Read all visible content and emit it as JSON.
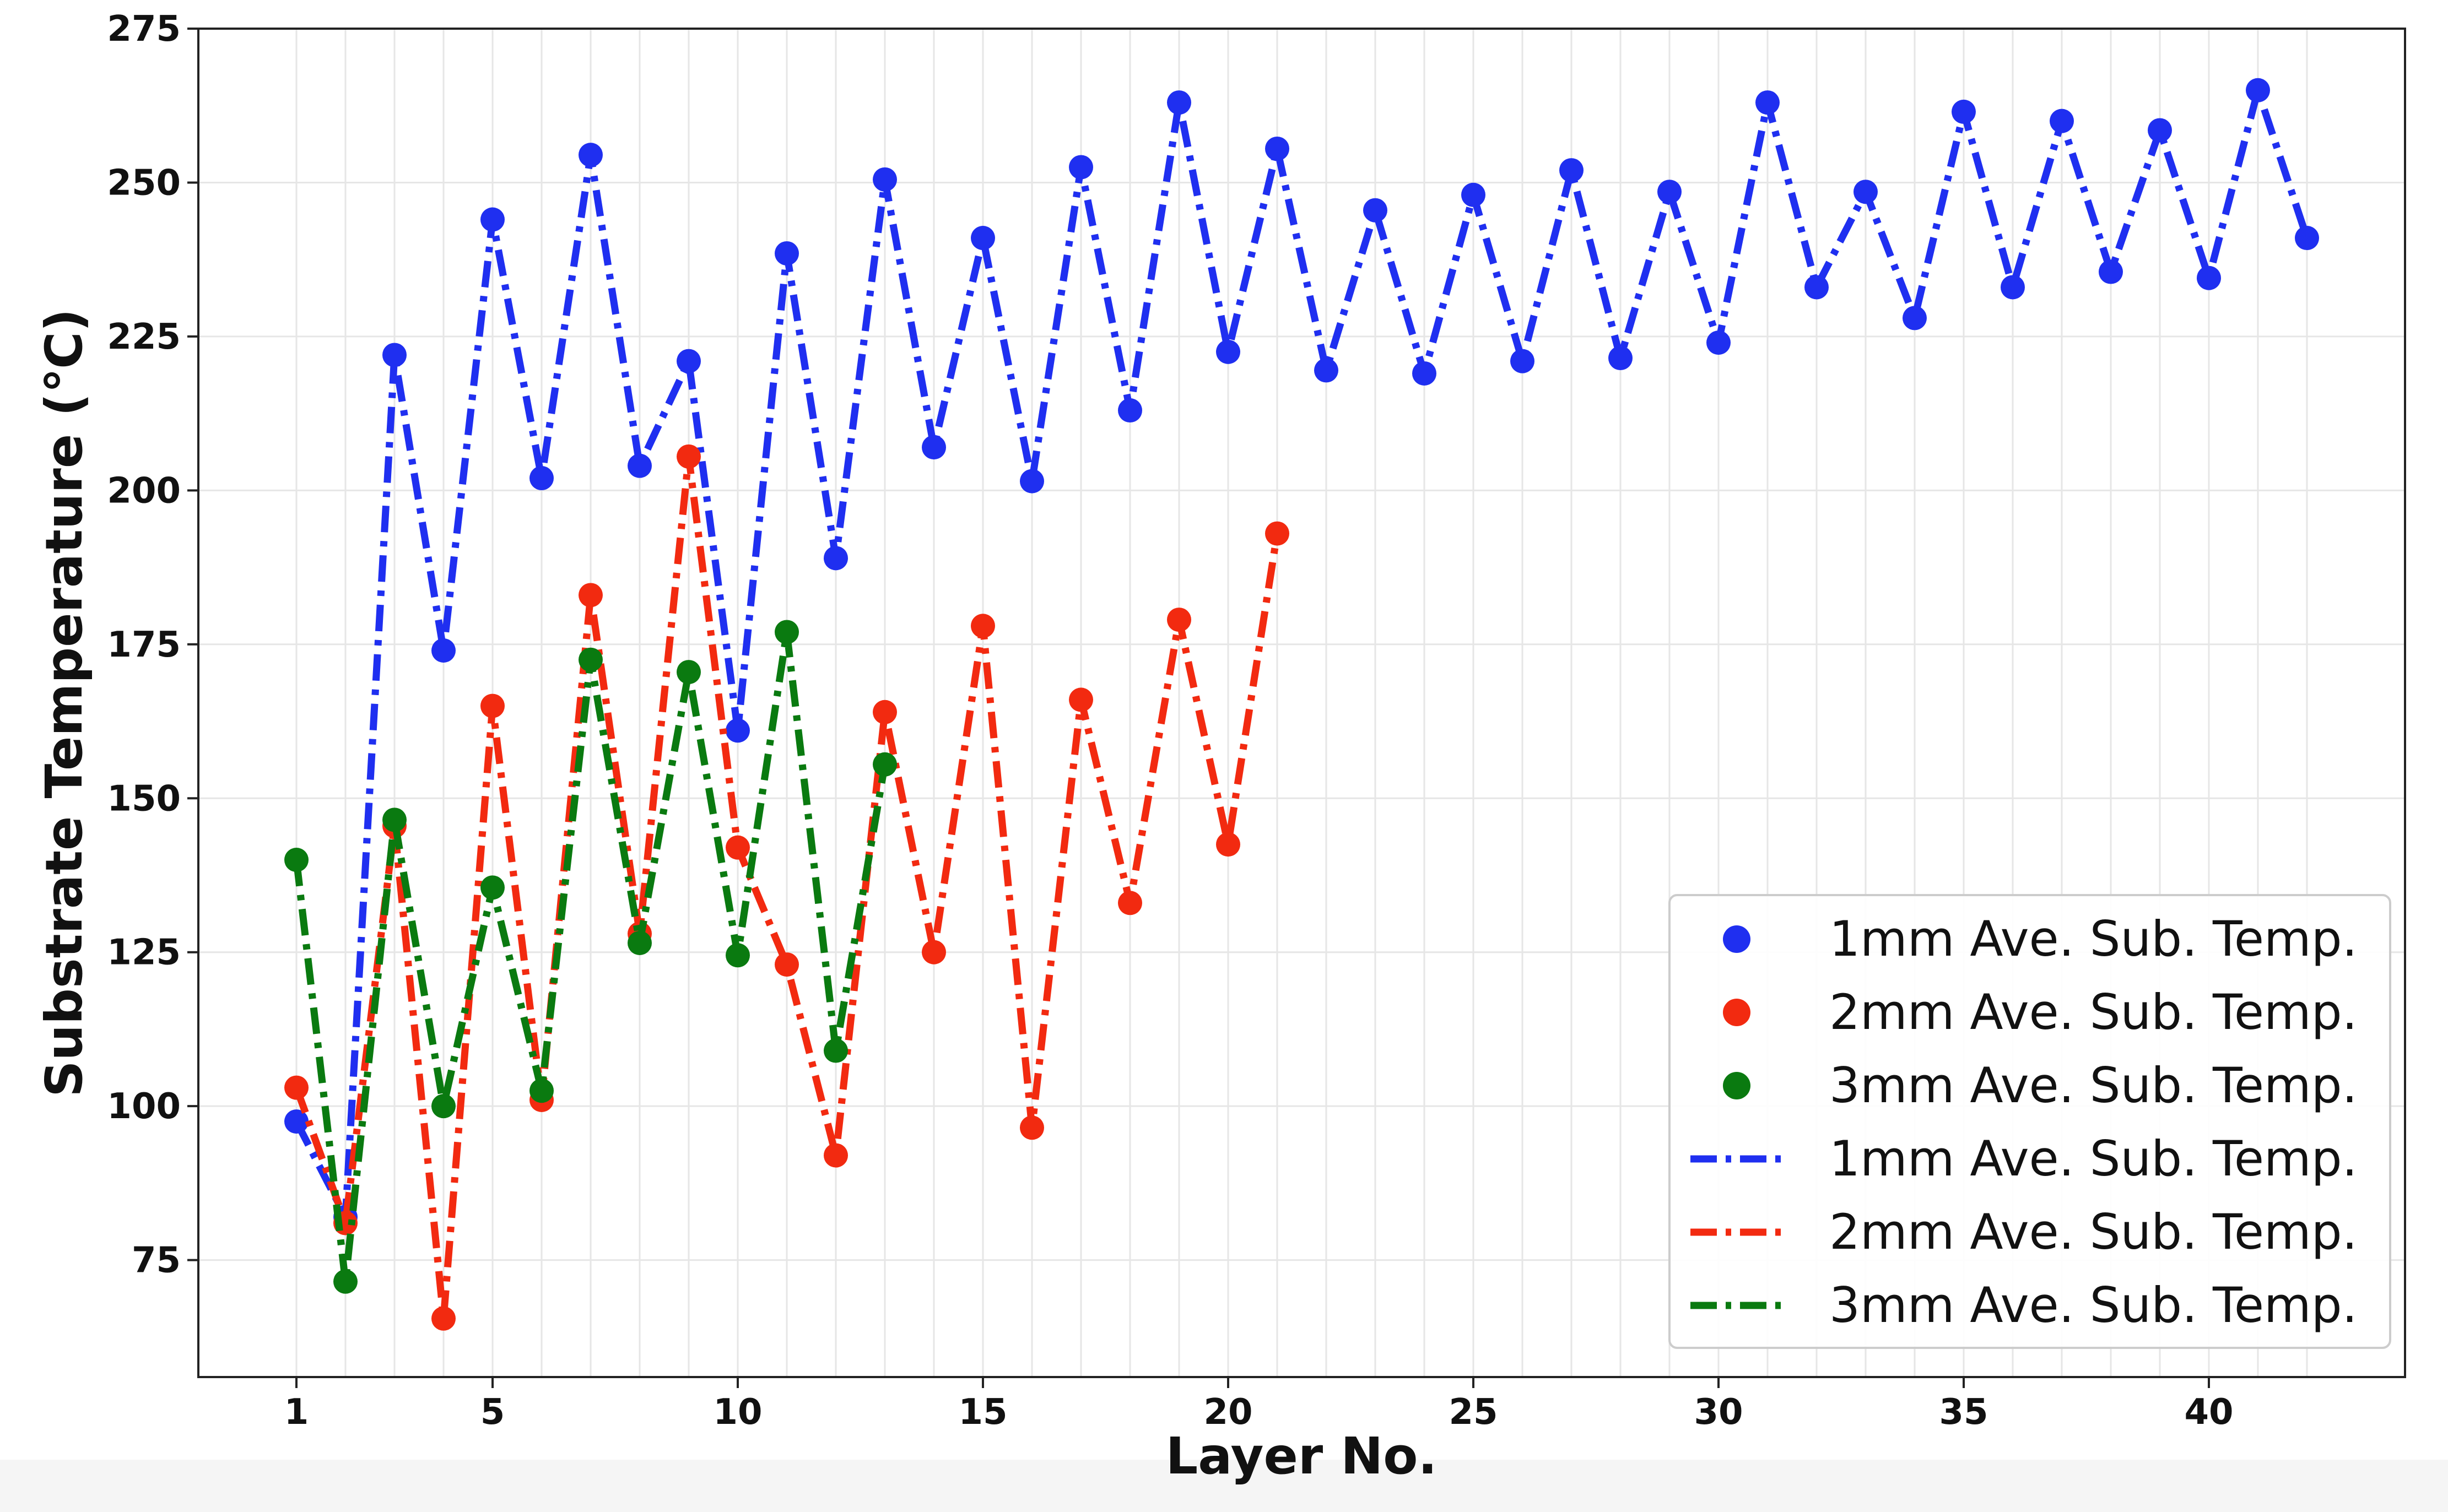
{
  "chart_data": {
    "type": "line",
    "title": "",
    "xlabel": "Layer No.",
    "ylabel": "Substrate Temperature (",
    "ylabel_unit": "℃",
    "ylabel_close": ")",
    "xlim": [
      -1,
      44
    ],
    "ylim": [
      56,
      275
    ],
    "xticks": [
      1,
      5,
      10,
      15,
      20,
      25,
      30,
      35,
      40
    ],
    "yticks": [
      75,
      100,
      125,
      150,
      175,
      200,
      225,
      250,
      275
    ],
    "grid": true,
    "legend_position": "lower-right",
    "series": [
      {
        "name": "1mm Ave. Sub. Temp.",
        "color": "#1f2ff0",
        "x": [
          1,
          2,
          3,
          4,
          5,
          6,
          7,
          8,
          9,
          10,
          11,
          12,
          13,
          14,
          15,
          16,
          17,
          18,
          19,
          20,
          21,
          22,
          23,
          24,
          25,
          26,
          27,
          28,
          29,
          30,
          31,
          32,
          33,
          34,
          35,
          36,
          37,
          38,
          39,
          40,
          41,
          42
        ],
        "y": [
          97.5,
          82,
          222,
          174,
          244,
          202,
          254.5,
          204,
          221,
          161,
          238.5,
          189,
          250.5,
          207,
          241,
          201.5,
          252.5,
          213,
          263,
          222.5,
          255.5,
          219.5,
          245.5,
          219,
          248,
          221,
          252,
          221.5,
          248.5,
          224,
          263,
          233,
          248.5,
          228,
          261.5,
          233,
          260,
          235.5,
          258.5,
          234.5,
          265,
          241
        ]
      },
      {
        "name": "2mm Ave. Sub. Temp.",
        "color": "#f22a10",
        "x": [
          1,
          2,
          3,
          4,
          5,
          6,
          7,
          8,
          9,
          10,
          11,
          12,
          13,
          14,
          15,
          16,
          17,
          18,
          19,
          20,
          21
        ],
        "y": [
          103,
          81,
          145.5,
          65.5,
          165,
          101,
          183,
          128,
          205.5,
          142,
          123,
          92,
          164,
          125,
          178,
          96.5,
          166,
          133,
          179,
          142.5,
          193
        ]
      },
      {
        "name": "3mm Ave. Sub. Temp.",
        "color": "#0a7a10",
        "x": [
          1,
          2,
          3,
          4,
          5,
          6,
          7,
          8,
          9,
          10,
          11,
          12,
          13
        ],
        "y": [
          140,
          71.5,
          146.5,
          100,
          135.5,
          102.5,
          172.5,
          126.5,
          170.5,
          124.5,
          177,
          109,
          155.5
        ]
      }
    ],
    "legend": [
      {
        "label": "1mm Ave. Sub. Temp.",
        "kind": "marker",
        "color": "#1f2ff0"
      },
      {
        "label": "2mm Ave. Sub. Temp.",
        "kind": "marker",
        "color": "#f22a10"
      },
      {
        "label": "3mm Ave. Sub. Temp.",
        "kind": "marker",
        "color": "#0a7a10"
      },
      {
        "label": "1mm Ave. Sub. Temp.",
        "kind": "line",
        "color": "#1f2ff0"
      },
      {
        "label": "2mm Ave. Sub. Temp.",
        "kind": "line",
        "color": "#f22a10"
      },
      {
        "label": "3mm Ave. Sub. Temp.",
        "kind": "line",
        "color": "#0a7a10"
      }
    ]
  }
}
